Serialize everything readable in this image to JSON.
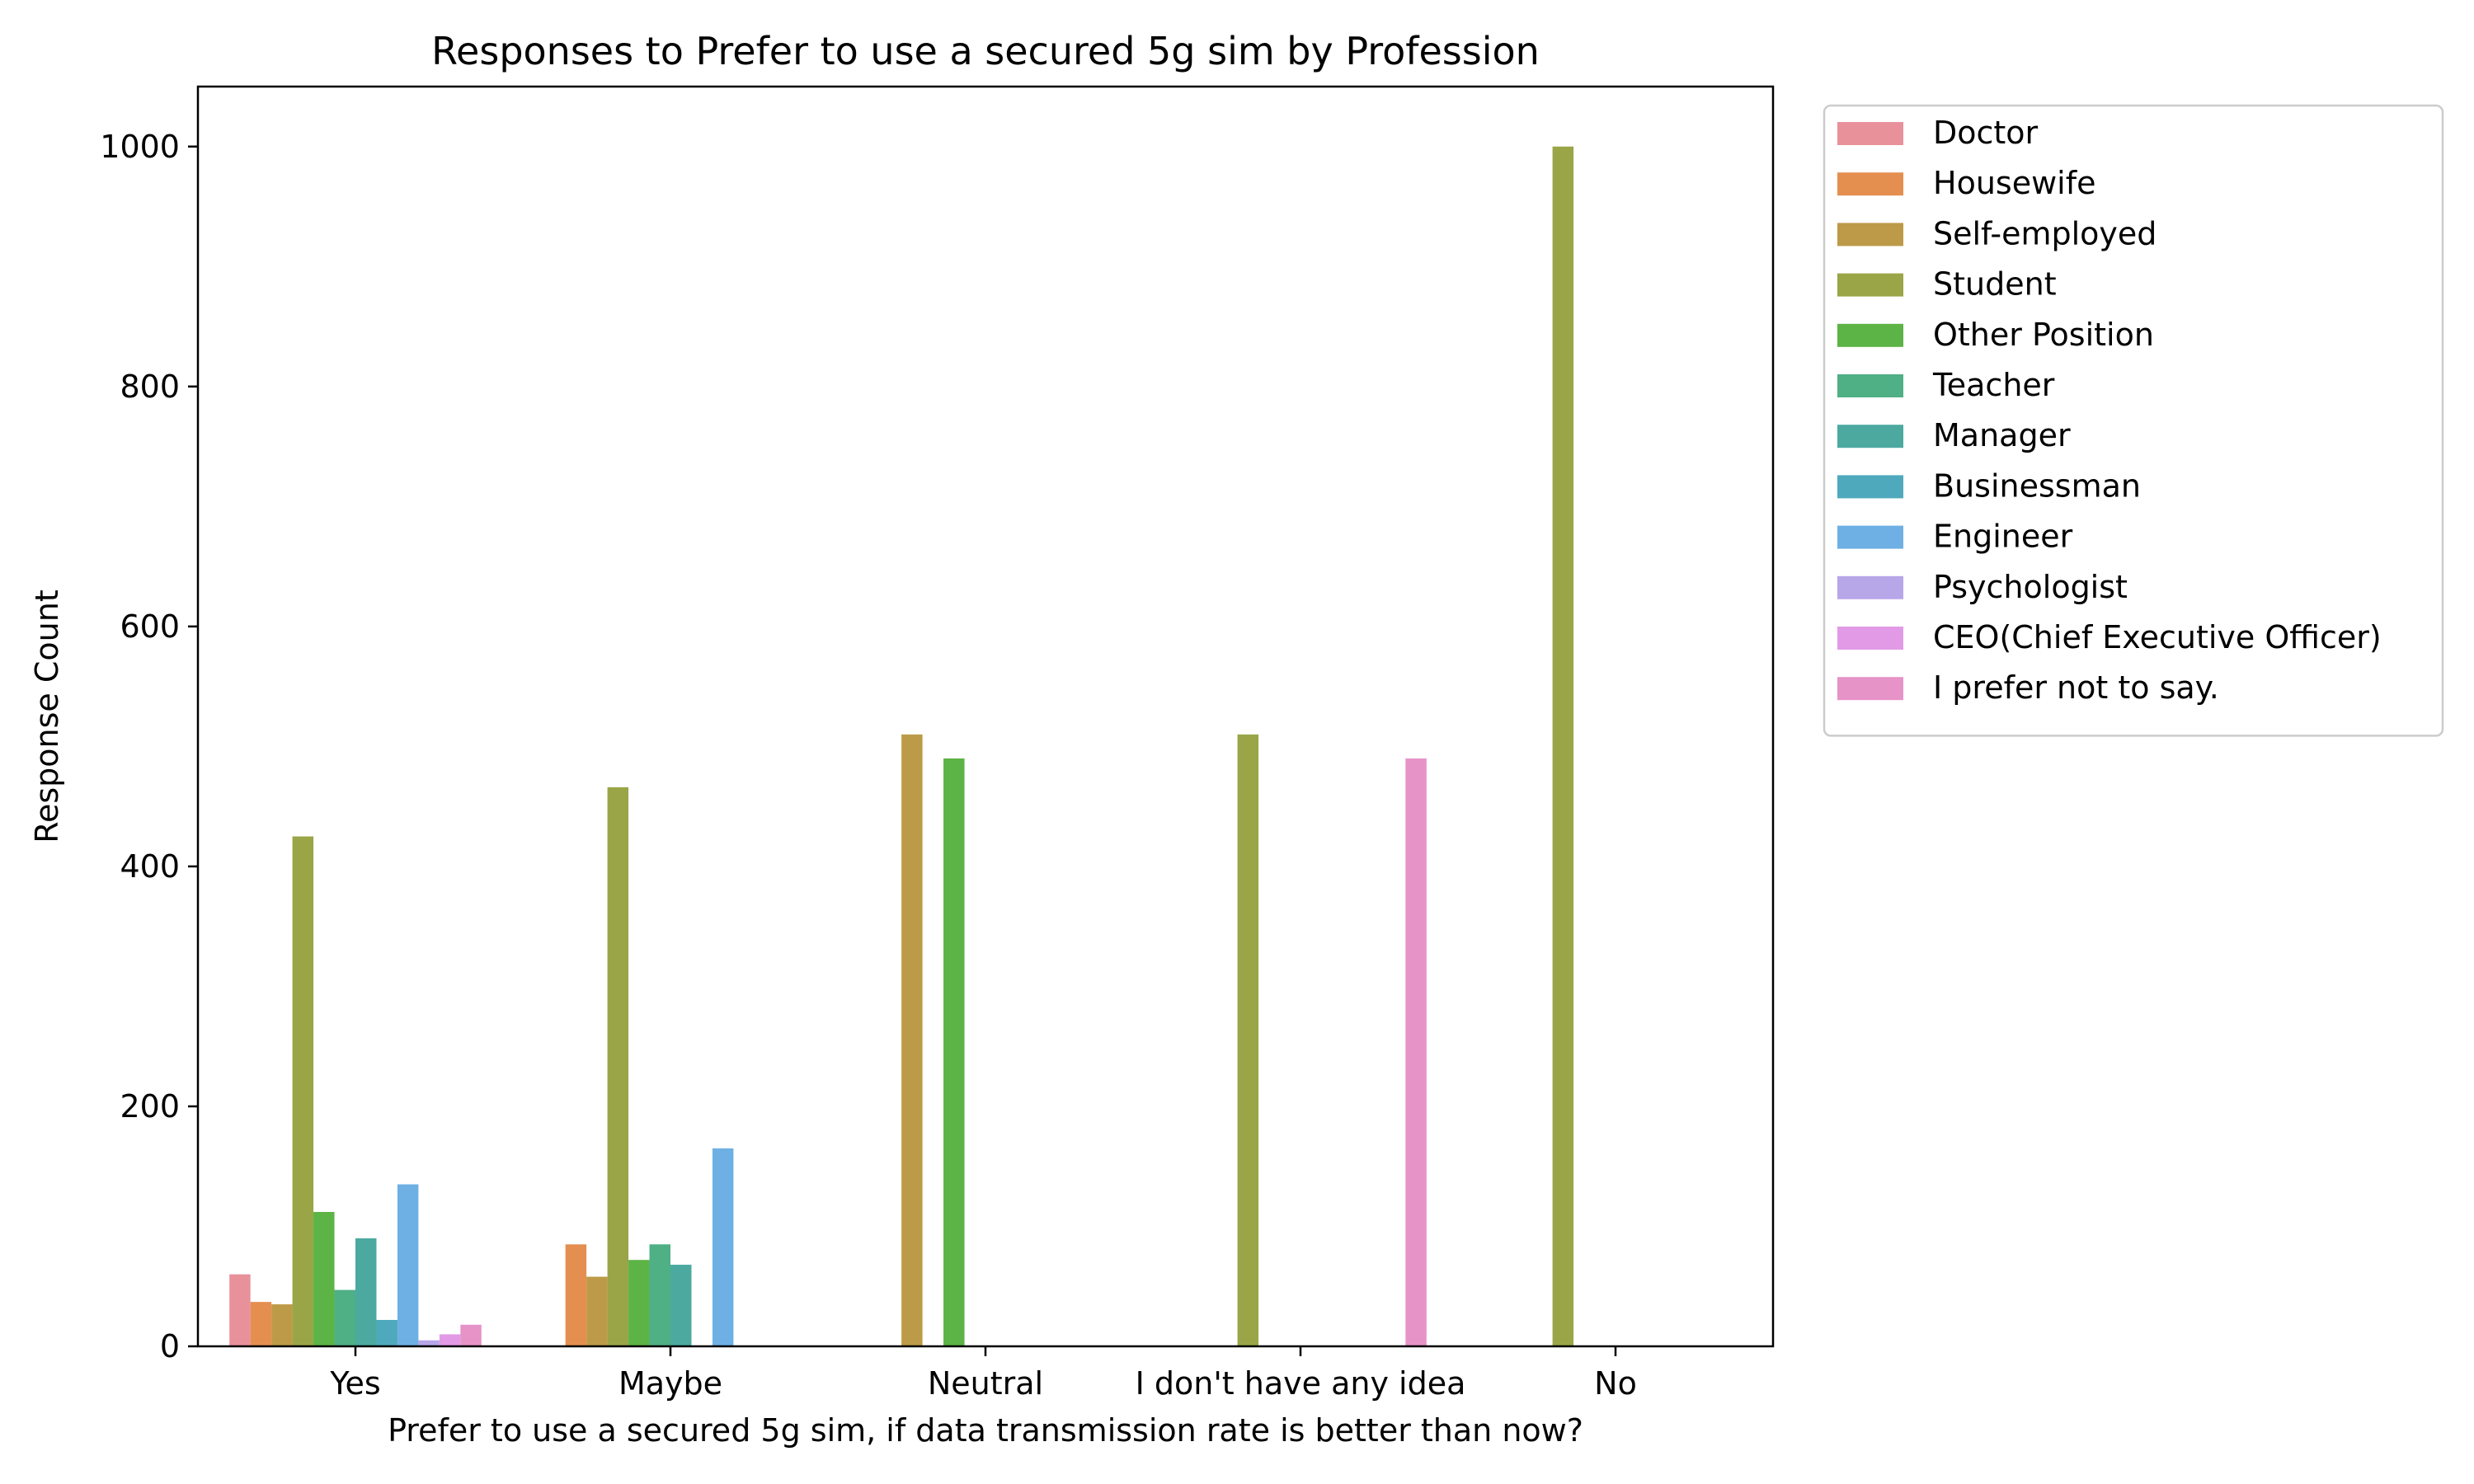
{
  "chart_data": {
    "type": "bar",
    "title": "Responses to Prefer to use a secured 5g sim by Profession",
    "xlabel": "Prefer to use a secured 5g sim, if data transmission rate is better than now?",
    "ylabel": "Response Count",
    "ylim": [
      0,
      1050
    ],
    "yticks": [
      0,
      200,
      400,
      600,
      800,
      1000
    ],
    "grid": false,
    "legend_position": "outside-right-top",
    "categories": [
      "Yes",
      "Maybe",
      "Neutral",
      "I don't have any idea",
      "No"
    ],
    "series": [
      {
        "name": "Doctor",
        "color": "#e8919b",
        "values": [
          60,
          0,
          0,
          0,
          0
        ]
      },
      {
        "name": "Housewife",
        "color": "#e48f50",
        "values": [
          37,
          85,
          0,
          0,
          0
        ]
      },
      {
        "name": "Self-employed",
        "color": "#bd9a48",
        "values": [
          35,
          58,
          510,
          0,
          0
        ]
      },
      {
        "name": "Student",
        "color": "#9aa547",
        "values": [
          425,
          466,
          0,
          510,
          1000
        ]
      },
      {
        "name": "Other Position",
        "color": "#5cb346",
        "values": [
          112,
          72,
          490,
          0,
          0
        ]
      },
      {
        "name": "Teacher",
        "color": "#4faf85",
        "values": [
          47,
          85,
          0,
          0,
          0
        ]
      },
      {
        "name": "Manager",
        "color": "#4ba9a0",
        "values": [
          90,
          68,
          0,
          0,
          0
        ]
      },
      {
        "name": "Businessman",
        "color": "#4fa9bc",
        "values": [
          22,
          0,
          0,
          0,
          0
        ]
      },
      {
        "name": "Engineer",
        "color": "#6eb0e4",
        "values": [
          135,
          165,
          0,
          0,
          0
        ]
      },
      {
        "name": "Psychologist",
        "color": "#b7a6e8",
        "values": [
          5,
          0,
          0,
          0,
          0
        ]
      },
      {
        "name": "CEO(Chief Executive Officer)",
        "color": "#e29ae6",
        "values": [
          10,
          0,
          0,
          0,
          0
        ]
      },
      {
        "name": "I prefer not to say.",
        "color": "#e693c8",
        "values": [
          18,
          0,
          0,
          490,
          0
        ]
      }
    ]
  }
}
